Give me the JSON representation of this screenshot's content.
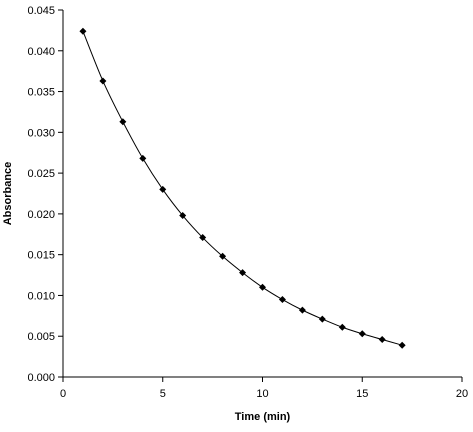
{
  "chart_data": {
    "type": "scatter",
    "title": "",
    "xlabel": "Time (min)",
    "ylabel": "Absorbance",
    "xlim": [
      0,
      20
    ],
    "ylim": [
      0,
      0.045
    ],
    "x_ticks": [
      "0",
      "5",
      "10",
      "15",
      "20"
    ],
    "y_ticks": [
      "0.000",
      "0.005",
      "0.010",
      "0.015",
      "0.020",
      "0.025",
      "0.030",
      "0.035",
      "0.040",
      "0.045"
    ],
    "grid": false,
    "legend": "none",
    "marker": "diamond",
    "line": "smooth",
    "color": "#000000",
    "series": [
      {
        "x": [
          1,
          2,
          3,
          4,
          5,
          6,
          7,
          8,
          9,
          10,
          11,
          12,
          13,
          14,
          15,
          16,
          17
        ],
        "y": [
          0.0424,
          0.0363,
          0.0313,
          0.0268,
          0.023,
          0.0198,
          0.0171,
          0.0148,
          0.0128,
          0.011,
          0.0095,
          0.0082,
          0.0071,
          0.0061,
          0.0053,
          0.0046,
          0.0039
        ]
      }
    ]
  }
}
